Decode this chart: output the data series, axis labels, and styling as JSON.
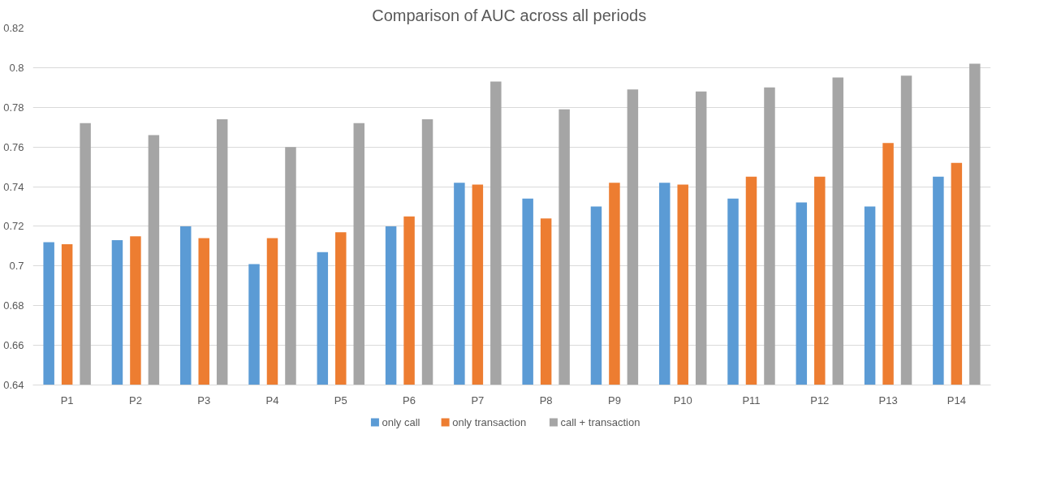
{
  "chart_data": {
    "type": "bar",
    "title": "Comparison  of AUC across all periods",
    "categories": [
      "P1",
      "P2",
      "P3",
      "P4",
      "P5",
      "P6",
      "P7",
      "P8",
      "P9",
      "P10",
      "P11",
      "P12",
      "P13",
      "P14"
    ],
    "series": [
      {
        "name": "only call",
        "color": "#5b9bd5",
        "values": [
          0.712,
          0.713,
          0.72,
          0.701,
          0.707,
          0.72,
          0.742,
          0.734,
          0.73,
          0.742,
          0.734,
          0.732,
          0.73,
          0.745
        ]
      },
      {
        "name": "only transaction",
        "color": "#ed7d31",
        "values": [
          0.711,
          0.715,
          0.714,
          0.714,
          0.717,
          0.725,
          0.741,
          0.724,
          0.742,
          0.741,
          0.745,
          0.745,
          0.762,
          0.752
        ]
      },
      {
        "name": "call + transaction",
        "color": "#a5a5a5",
        "values": [
          0.772,
          0.766,
          0.774,
          0.76,
          0.772,
          0.774,
          0.793,
          0.779,
          0.789,
          0.788,
          0.79,
          0.795,
          0.796,
          0.802
        ]
      }
    ],
    "ylim": [
      0.64,
      0.82
    ],
    "yticks": [
      0.64,
      0.66,
      0.68,
      0.7,
      0.72,
      0.74,
      0.76,
      0.78,
      0.8,
      0.82
    ],
    "grid": "y",
    "legend": "bottom"
  }
}
